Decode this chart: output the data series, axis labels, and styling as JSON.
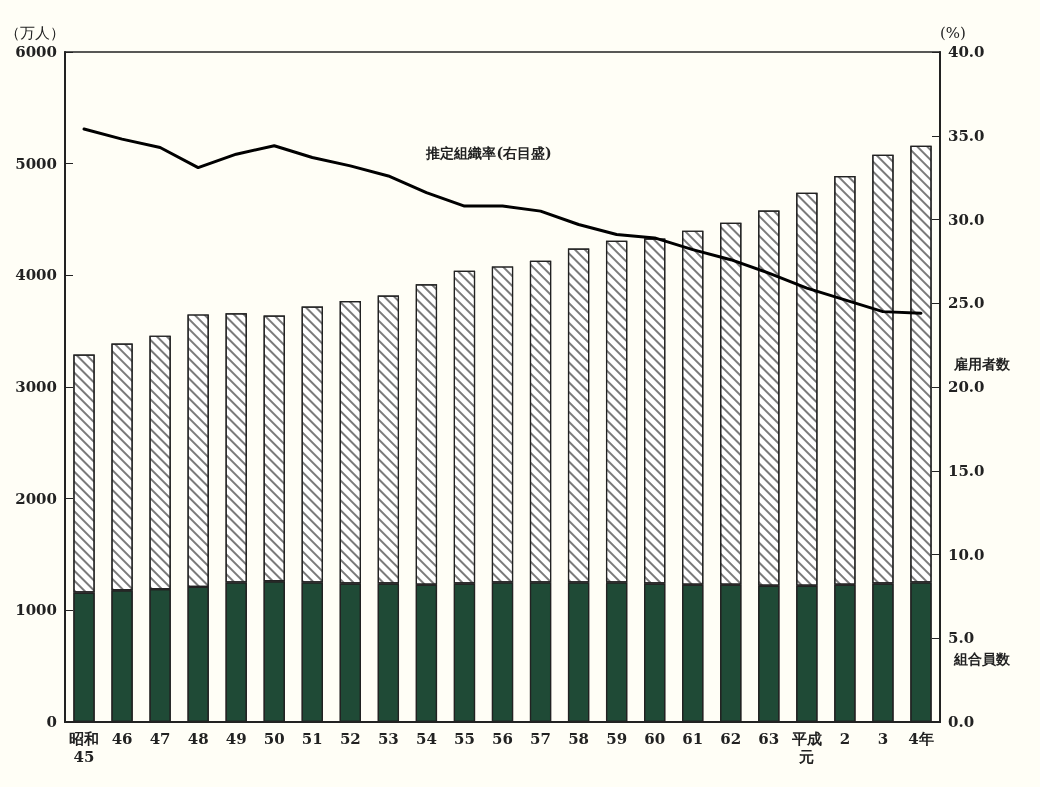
{
  "chart_data": {
    "type": "bar",
    "stacked": true,
    "legend": false,
    "grid": false,
    "categories": [
      "昭和45",
      "46",
      "47",
      "48",
      "49",
      "50",
      "51",
      "52",
      "53",
      "54",
      "55",
      "56",
      "57",
      "58",
      "59",
      "60",
      "61",
      "62",
      "63",
      "平成元",
      "2",
      "3",
      "4年"
    ],
    "series": [
      {
        "name": "組合員数",
        "color": "#1f4a36",
        "values": [
          1160,
          1180,
          1190,
          1210,
          1250,
          1260,
          1250,
          1240,
          1240,
          1230,
          1240,
          1250,
          1250,
          1250,
          1250,
          1240,
          1230,
          1230,
          1220,
          1220,
          1230,
          1240,
          1250
        ]
      },
      {
        "name": "雇用者数",
        "color": "#ffffff",
        "values": [
          2130,
          2210,
          2270,
          2440,
          2410,
          2380,
          2470,
          2530,
          2580,
          2690,
          2800,
          2830,
          2880,
          2990,
          3060,
          3090,
          3170,
          3240,
          3360,
          3520,
          3660,
          3840,
          3910
        ]
      },
      {
        "name": "推定組織率(右目盛)",
        "type": "line",
        "axis": "y2",
        "color": "#000000",
        "marker": "none",
        "values": [
          35.4,
          34.8,
          34.3,
          33.1,
          33.9,
          34.4,
          33.7,
          33.2,
          32.6,
          31.6,
          30.8,
          30.8,
          30.5,
          29.7,
          29.1,
          28.9,
          28.2,
          27.6,
          26.8,
          25.9,
          25.2,
          24.5,
          24.4
        ]
      }
    ],
    "ylabel": "（万人）",
    "y2label": "(%)",
    "ylim": [
      0,
      6000
    ],
    "yticks": [
      0,
      1000,
      2000,
      3000,
      4000,
      5000,
      6000
    ],
    "y2lim": [
      0,
      40
    ],
    "y2ticks": [
      {
        "value": 0,
        "label": "0.0"
      },
      {
        "value": 5,
        "label": "5.0"
      },
      {
        "value": 10,
        "label": "10.0"
      },
      {
        "value": 15,
        "label": "15.0"
      },
      {
        "value": 20,
        "label": "20.0"
      },
      {
        "value": 25,
        "label": "25.0"
      },
      {
        "value": 30,
        "label": "30.0"
      },
      {
        "value": 35,
        "label": "35.0"
      },
      {
        "value": 40,
        "label": "40.0"
      }
    ]
  }
}
